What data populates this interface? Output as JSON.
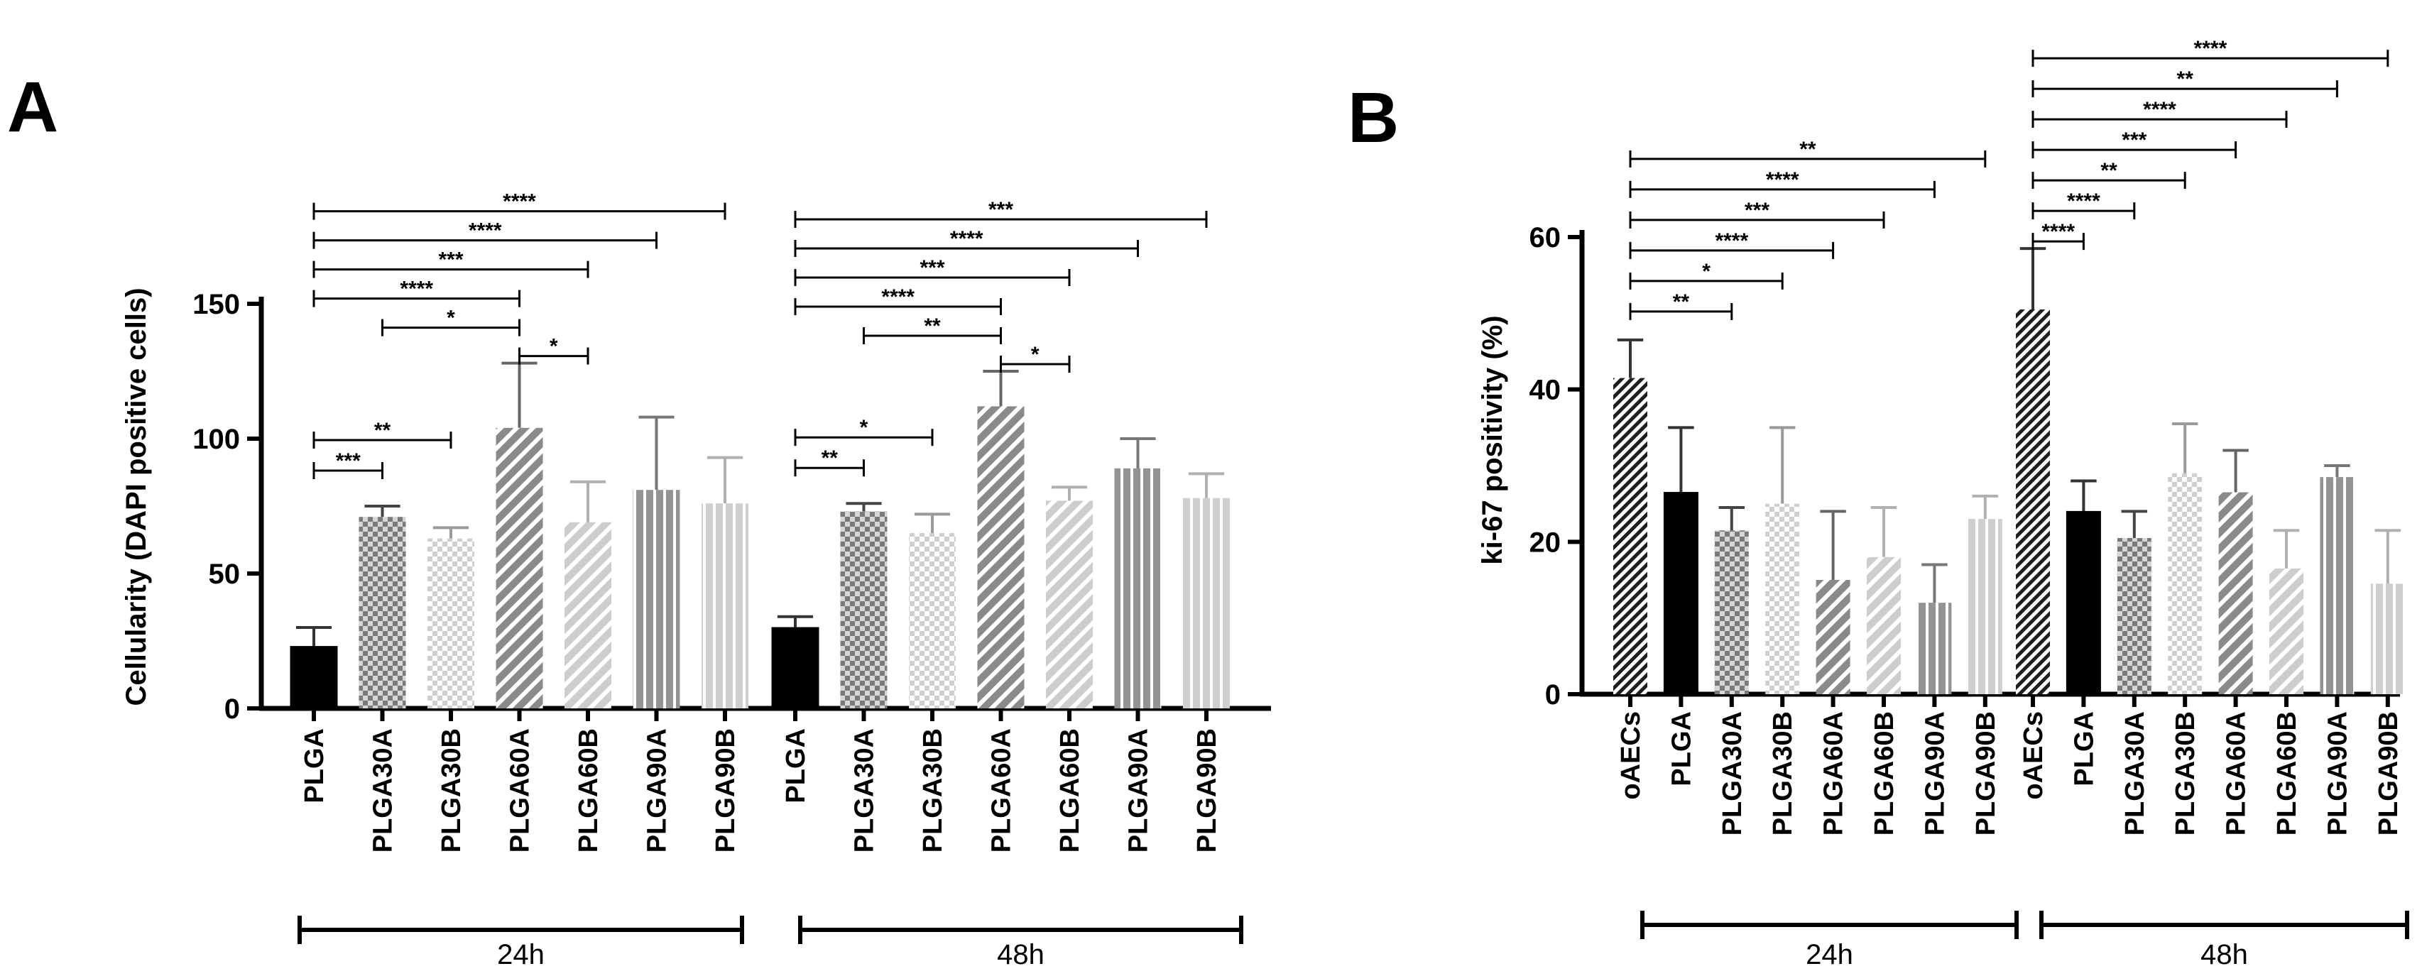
{
  "panels": [
    {
      "letter": "A",
      "id": "A"
    },
    {
      "letter": "B",
      "id": "B"
    }
  ],
  "chart_data": [
    {
      "id": "A",
      "type": "bar",
      "title": "",
      "xlabel": "",
      "ylabel": "Cellularity (DAPI positive cells)",
      "ylim": [
        0,
        150
      ],
      "yticks": [
        0,
        50,
        100,
        150
      ],
      "tick_labels": [
        "0",
        "50",
        "100",
        "150"
      ],
      "groups": [
        {
          "name": "24h",
          "categories": [
            "PLGA",
            "PLGA30A",
            "PLGA30B",
            "PLGA60A",
            "PLGA60B",
            "PLGA90A",
            "PLGA90B"
          ],
          "values": [
            23,
            71,
            63,
            104,
            69,
            81,
            76
          ],
          "errors": [
            7,
            4,
            4,
            24,
            15,
            27,
            17
          ],
          "significance": [
            {
              "from": 0,
              "to": 1,
              "label": "***"
            },
            {
              "from": 0,
              "to": 2,
              "label": "**"
            },
            {
              "from": 3,
              "to": 4,
              "label": "*"
            },
            {
              "from": 1,
              "to": 3,
              "label": "*"
            },
            {
              "from": 0,
              "to": 3,
              "label": "****"
            },
            {
              "from": 0,
              "to": 4,
              "label": "***"
            },
            {
              "from": 0,
              "to": 5,
              "label": "****"
            },
            {
              "from": 0,
              "to": 6,
              "label": "****"
            }
          ]
        },
        {
          "name": "48h",
          "categories": [
            "PLGA",
            "PLGA30A",
            "PLGA30B",
            "PLGA60A",
            "PLGA60B",
            "PLGA90A",
            "PLGA90B"
          ],
          "values": [
            30,
            73,
            65,
            112,
            77,
            89,
            78
          ],
          "errors": [
            4,
            3,
            7,
            13,
            5,
            11,
            9
          ],
          "significance": [
            {
              "from": 0,
              "to": 1,
              "label": "**"
            },
            {
              "from": 0,
              "to": 2,
              "label": "*"
            },
            {
              "from": 3,
              "to": 4,
              "label": "*"
            },
            {
              "from": 1,
              "to": 3,
              "label": "**"
            },
            {
              "from": 0,
              "to": 3,
              "label": "****"
            },
            {
              "from": 0,
              "to": 4,
              "label": "***"
            },
            {
              "from": 0,
              "to": 5,
              "label": "****"
            },
            {
              "from": 0,
              "to": 6,
              "label": "***"
            }
          ]
        }
      ]
    },
    {
      "id": "B",
      "type": "bar",
      "title": "",
      "xlabel": "",
      "ylabel": "ki-67 positivity (%)",
      "ylim": [
        0,
        60
      ],
      "yticks": [
        0,
        20,
        40,
        60
      ],
      "tick_labels": [
        "0",
        "20",
        "40",
        "60"
      ],
      "groups": [
        {
          "name": "24h",
          "categories": [
            "oAECs",
            "PLGA",
            "PLGA30A",
            "PLGA30B",
            "PLGA60A",
            "PLGA60B",
            "PLGA90A",
            "PLGA90B"
          ],
          "values": [
            41.5,
            26.5,
            21.5,
            25,
            15,
            18,
            12,
            23
          ],
          "errors": [
            5,
            8.5,
            3,
            10,
            9,
            6.5,
            5,
            3
          ],
          "significance": [
            {
              "from": 0,
              "to": 2,
              "label": "**"
            },
            {
              "from": 0,
              "to": 3,
              "label": "*"
            },
            {
              "from": 0,
              "to": 4,
              "label": "****"
            },
            {
              "from": 0,
              "to": 5,
              "label": "***"
            },
            {
              "from": 0,
              "to": 6,
              "label": "****"
            },
            {
              "from": 0,
              "to": 7,
              "label": "**"
            }
          ]
        },
        {
          "name": "48h",
          "categories": [
            "oAECs",
            "PLGA",
            "PLGA30A",
            "PLGA30B",
            "PLGA60A",
            "PLGA60B",
            "PLGA90A",
            "PLGA90B"
          ],
          "values": [
            50.5,
            24,
            20.5,
            29,
            26.5,
            16.5,
            28.5,
            14.5
          ],
          "errors": [
            8,
            4,
            3.5,
            6.5,
            5.5,
            5,
            1.5,
            7
          ],
          "significance": [
            {
              "from": 0,
              "to": 1,
              "label": "****"
            },
            {
              "from": 0,
              "to": 2,
              "label": "****"
            },
            {
              "from": 0,
              "to": 3,
              "label": "**"
            },
            {
              "from": 0,
              "to": 4,
              "label": "***"
            },
            {
              "from": 0,
              "to": 5,
              "label": "****"
            },
            {
              "from": 0,
              "to": 6,
              "label": "**"
            },
            {
              "from": 0,
              "to": 7,
              "label": "****"
            }
          ]
        }
      ]
    }
  ],
  "colors": {
    "PLGA": "#000000",
    "PLGA30A": "#8c8c8c",
    "PLGA30B": "#c8c8c8",
    "PLGA60A": "#8c8c8c",
    "PLGA60B": "#c8c8c8",
    "PLGA90A": "#959595",
    "PLGA90B": "#c8c8c8",
    "oAECs": "#2a2a2a",
    "err_dark": "#333333",
    "err_light": "#aaaaaa"
  }
}
